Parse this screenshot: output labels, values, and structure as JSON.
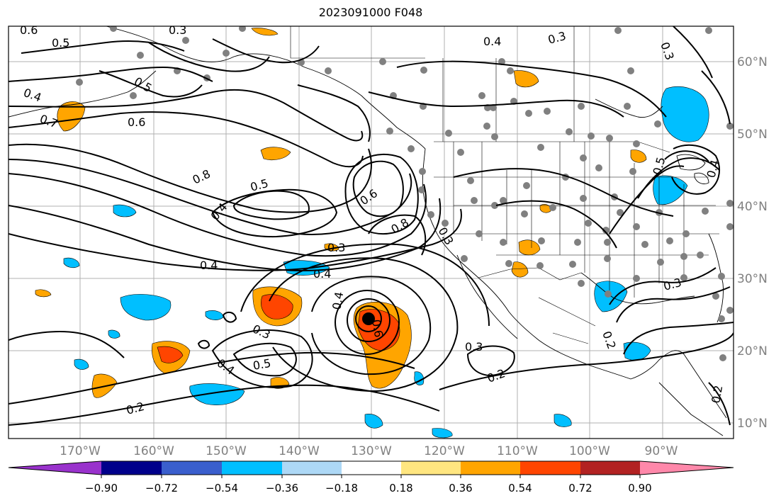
{
  "title": "2023091000 F048",
  "axes": {
    "lon_labels": [
      "170°W",
      "160°W",
      "150°W",
      "140°W",
      "130°W",
      "120°W",
      "110°W",
      "100°W",
      "90°W"
    ],
    "lat_labels": [
      "60°N",
      "50°N",
      "40°N",
      "30°N",
      "20°N",
      "10°N"
    ]
  },
  "colorbar": {
    "ticks": [
      "−0.90",
      "−0.72",
      "−0.54",
      "−0.36",
      "−0.18",
      "0.18",
      "0.36",
      "0.54",
      "0.72",
      "0.90"
    ],
    "colors": [
      "#9932CC",
      "#00008B",
      "#3A5FCD",
      "#00BFFF",
      "#ADD8F6",
      "#FFFFFF",
      "#FFE680",
      "#FFA500",
      "#FF4500",
      "#B22222",
      "#FF88AA"
    ]
  },
  "contour_labels": [
    {
      "text": "0.6",
      "key": "c1"
    },
    {
      "text": "0.5",
      "key": "c2"
    },
    {
      "text": "0.3",
      "key": "c3"
    },
    {
      "text": "0.5",
      "key": "c4"
    },
    {
      "text": "0.4",
      "key": "c5"
    },
    {
      "text": "0.7",
      "key": "c6"
    },
    {
      "text": "0.6",
      "key": "c7"
    },
    {
      "text": "0.8",
      "key": "c8"
    },
    {
      "text": "0.5",
      "key": "c9"
    },
    {
      "text": "0.4",
      "key": "c10"
    },
    {
      "text": "0.4",
      "key": "c11"
    },
    {
      "text": "0.6",
      "key": "c12"
    },
    {
      "text": "0.8",
      "key": "c13"
    },
    {
      "text": "0.3",
      "key": "c14"
    },
    {
      "text": "0.4",
      "key": "c15"
    },
    {
      "text": "0.4",
      "key": "c16"
    },
    {
      "text": "0.3",
      "key": "c17"
    },
    {
      "text": "0.3",
      "key": "c18"
    },
    {
      "text": "0.6",
      "key": "c19"
    },
    {
      "text": "0.4",
      "key": "c20"
    },
    {
      "text": "0.5",
      "key": "c21"
    },
    {
      "text": "0.3",
      "key": "c22"
    },
    {
      "text": "0.2",
      "key": "c23"
    },
    {
      "text": "0.2",
      "key": "c24"
    },
    {
      "text": "0.4",
      "key": "c25"
    },
    {
      "text": "0.3",
      "key": "c26"
    },
    {
      "text": "0.3",
      "key": "c27"
    },
    {
      "text": "0.2",
      "key": "c28"
    },
    {
      "text": "0.5",
      "key": "c29"
    },
    {
      "text": "0.4",
      "key": "c30"
    },
    {
      "text": "0.2",
      "key": "c31"
    },
    {
      "text": "0.3",
      "key": "c32"
    }
  ]
}
